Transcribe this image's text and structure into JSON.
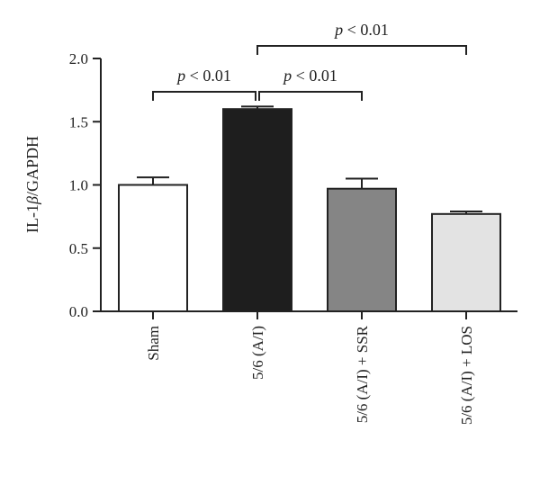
{
  "chart_data": {
    "type": "bar",
    "ylabel_prefix": "IL-1",
    "ylabel_greek": "β",
    "ylabel_suffix": "/GAPDH",
    "ylim": [
      0,
      2.0
    ],
    "yticks": [
      "0.0",
      "0.5",
      "1.0",
      "1.5",
      "2.0"
    ],
    "categories": [
      "Sham",
      "5/6 (A/I)",
      "5/6 (A/I) + SSR",
      "5/6 (A/I) + LOS"
    ],
    "values": [
      1.0,
      1.6,
      0.97,
      0.77
    ],
    "errors": [
      0.06,
      0.02,
      0.08,
      0.02
    ],
    "colors": [
      "#ffffff",
      "#1e1e1e",
      "#858585",
      "#e3e3e3"
    ],
    "significance": [
      {
        "from": 0,
        "to": 1,
        "p_symbol": "p",
        "p_rest": " < 0.01"
      },
      {
        "from": 1,
        "to": 2,
        "p_symbol": "p",
        "p_rest": " < 0.01"
      },
      {
        "from": 1,
        "to": 3,
        "p_symbol": "p",
        "p_rest": " < 0.01"
      }
    ],
    "grid": false,
    "legend": "none"
  }
}
